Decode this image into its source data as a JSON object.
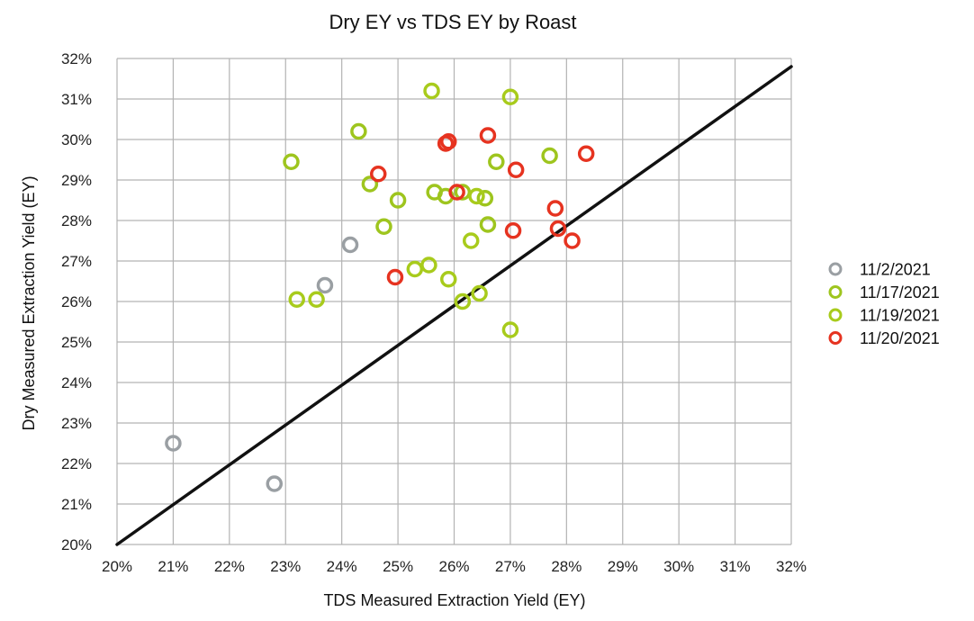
{
  "chart_data": {
    "type": "scatter",
    "title": "Dry EY vs TDS EY by Roast",
    "xlabel": "TDS Measured Extraction Yield (EY)",
    "ylabel": "Dry Measured Extraction Yield (EY)",
    "xlim": [
      20,
      32
    ],
    "ylim": [
      20,
      32
    ],
    "x_ticks": [
      "20%",
      "21%",
      "22%",
      "23%",
      "24%",
      "25%",
      "26%",
      "27%",
      "28%",
      "29%",
      "30%",
      "31%",
      "32%"
    ],
    "y_ticks": [
      "20%",
      "21%",
      "22%",
      "23%",
      "24%",
      "25%",
      "26%",
      "27%",
      "28%",
      "29%",
      "30%",
      "31%",
      "32%"
    ],
    "grid": true,
    "legend_position": "right",
    "reference_line": {
      "from": [
        20,
        20
      ],
      "to": [
        32,
        31.8
      ],
      "color": "#111111"
    },
    "series": [
      {
        "name": "11/2/2021",
        "color": "#9a9fa3",
        "points": [
          [
            21.0,
            22.5
          ],
          [
            22.8,
            21.5
          ],
          [
            23.7,
            26.4
          ],
          [
            24.15,
            27.4
          ]
        ]
      },
      {
        "name": "11/17/2021",
        "color": "#9ec51e",
        "points": [
          [
            23.1,
            29.45
          ],
          [
            24.3,
            30.2
          ],
          [
            24.5,
            28.9
          ],
          [
            25.0,
            28.5
          ],
          [
            24.75,
            27.85
          ],
          [
            25.65,
            28.7
          ],
          [
            25.85,
            28.6
          ],
          [
            26.15,
            28.7
          ],
          [
            26.55,
            28.55
          ],
          [
            26.6,
            27.9
          ],
          [
            26.75,
            29.45
          ],
          [
            27.7,
            29.6
          ]
        ]
      },
      {
        "name": "11/19/2021",
        "color": "#a8cb1c",
        "points": [
          [
            25.6,
            31.2
          ],
          [
            27.0,
            31.05
          ],
          [
            23.2,
            26.05
          ],
          [
            23.55,
            26.05
          ],
          [
            25.3,
            26.8
          ],
          [
            25.55,
            26.9
          ],
          [
            25.9,
            26.55
          ],
          [
            26.3,
            27.5
          ],
          [
            26.15,
            26.0
          ],
          [
            26.45,
            26.2
          ],
          [
            27.0,
            25.3
          ],
          [
            26.4,
            28.6
          ]
        ]
      },
      {
        "name": "11/20/2021",
        "color": "#e63320",
        "points": [
          [
            24.65,
            29.15
          ],
          [
            25.85,
            29.9
          ],
          [
            25.9,
            29.95
          ],
          [
            26.6,
            30.1
          ],
          [
            27.1,
            29.25
          ],
          [
            28.35,
            29.65
          ],
          [
            26.05,
            28.7
          ],
          [
            27.8,
            28.3
          ],
          [
            27.85,
            27.8
          ],
          [
            28.1,
            27.5
          ],
          [
            27.05,
            27.75
          ],
          [
            24.95,
            26.6
          ]
        ]
      }
    ]
  }
}
